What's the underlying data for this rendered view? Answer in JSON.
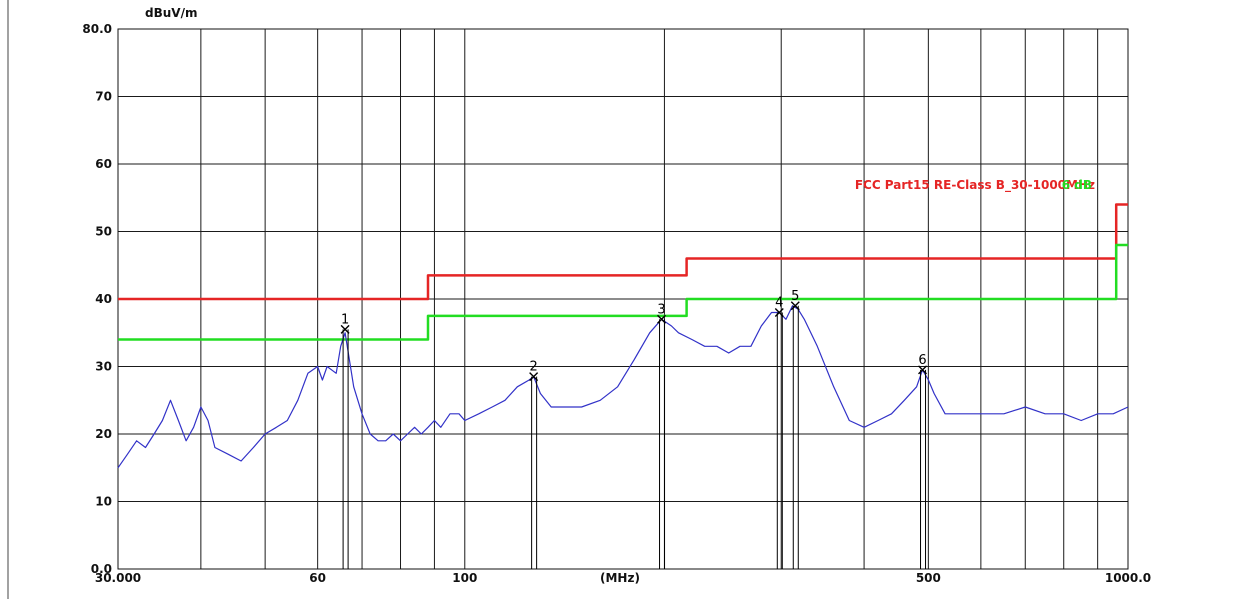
{
  "chart_data": {
    "type": "line",
    "ylabel": "dBuV/m",
    "xlabel": "(MHz)",
    "x_scale": "log",
    "xlim": [
      30,
      1000
    ],
    "ylim": [
      0,
      80
    ],
    "grid": true,
    "y_ticks": [
      "80.0",
      "70",
      "60",
      "50",
      "40",
      "30",
      "20",
      "10",
      "0.0"
    ],
    "x_ticks": [
      {
        "value": 30,
        "label": "30.000"
      },
      {
        "value": 60,
        "label": "60"
      },
      {
        "value": 100,
        "label": "100"
      },
      {
        "value": 500,
        "label": "500"
      },
      {
        "value": 1000,
        "label": "1000.0"
      }
    ],
    "legend": {
      "label": "FCC Part15 RE-Class B_30-1000MHz",
      "overlay_text": "6 dB",
      "placement": "top-right"
    },
    "colors": {
      "limit": "#e52525",
      "margin": "#22dd22",
      "trace": "#3232c8",
      "grid": "#1a1a1a"
    },
    "series": [
      {
        "name": "FCC Part15 RE-Class B_30-1000MHz",
        "points": [
          [
            30,
            40
          ],
          [
            88,
            40
          ],
          [
            88,
            43.5
          ],
          [
            216,
            43.5
          ],
          [
            216,
            46
          ],
          [
            960,
            46
          ],
          [
            960,
            54
          ],
          [
            1000,
            54
          ]
        ]
      },
      {
        "name": "6 dB",
        "points": [
          [
            30,
            34
          ],
          [
            88,
            34
          ],
          [
            88,
            37.5
          ],
          [
            216,
            37.5
          ],
          [
            216,
            40
          ],
          [
            960,
            40
          ],
          [
            960,
            48
          ],
          [
            1000,
            48
          ]
        ]
      },
      {
        "name": "",
        "points": [
          [
            30,
            15
          ],
          [
            31,
            17
          ],
          [
            32,
            19
          ],
          [
            33,
            18
          ],
          [
            34,
            20
          ],
          [
            35,
            22
          ],
          [
            36,
            25
          ],
          [
            37,
            22
          ],
          [
            38,
            19
          ],
          [
            39,
            21
          ],
          [
            40,
            24
          ],
          [
            41,
            22
          ],
          [
            42,
            18
          ],
          [
            44,
            17
          ],
          [
            46,
            16
          ],
          [
            48,
            18
          ],
          [
            50,
            20
          ],
          [
            52,
            21
          ],
          [
            54,
            22
          ],
          [
            56,
            25
          ],
          [
            58,
            29
          ],
          [
            60,
            30
          ],
          [
            61,
            28
          ],
          [
            62,
            30
          ],
          [
            64,
            29
          ],
          [
            65,
            33
          ],
          [
            66,
            35
          ],
          [
            67,
            31
          ],
          [
            68,
            27
          ],
          [
            70,
            23
          ],
          [
            72,
            20
          ],
          [
            74,
            19
          ],
          [
            76,
            19
          ],
          [
            78,
            20
          ],
          [
            80,
            19
          ],
          [
            82,
            20
          ],
          [
            84,
            21
          ],
          [
            86,
            20
          ],
          [
            88,
            21
          ],
          [
            90,
            22
          ],
          [
            92,
            21
          ],
          [
            95,
            23
          ],
          [
            98,
            23
          ],
          [
            100,
            22
          ],
          [
            105,
            23
          ],
          [
            110,
            24
          ],
          [
            115,
            25
          ],
          [
            120,
            27
          ],
          [
            125,
            28
          ],
          [
            127,
            28.5
          ],
          [
            130,
            26
          ],
          [
            135,
            24
          ],
          [
            140,
            24
          ],
          [
            150,
            24
          ],
          [
            160,
            25
          ],
          [
            170,
            27
          ],
          [
            180,
            31
          ],
          [
            190,
            35
          ],
          [
            198,
            37
          ],
          [
            205,
            36
          ],
          [
            210,
            35
          ],
          [
            220,
            34
          ],
          [
            230,
            33
          ],
          [
            240,
            33
          ],
          [
            250,
            32
          ],
          [
            260,
            33
          ],
          [
            270,
            33
          ],
          [
            280,
            36
          ],
          [
            290,
            38
          ],
          [
            298,
            38
          ],
          [
            305,
            37
          ],
          [
            312,
            39
          ],
          [
            318,
            38.5
          ],
          [
            325,
            37
          ],
          [
            340,
            33
          ],
          [
            360,
            27
          ],
          [
            380,
            22
          ],
          [
            400,
            21
          ],
          [
            420,
            22
          ],
          [
            440,
            23
          ],
          [
            460,
            25
          ],
          [
            480,
            27
          ],
          [
            490,
            29.5
          ],
          [
            500,
            28
          ],
          [
            510,
            26
          ],
          [
            530,
            23
          ],
          [
            560,
            23
          ],
          [
            600,
            23
          ],
          [
            650,
            23
          ],
          [
            700,
            24
          ],
          [
            750,
            23
          ],
          [
            800,
            23
          ],
          [
            850,
            22
          ],
          [
            900,
            23
          ],
          [
            950,
            23
          ],
          [
            1000,
            24
          ]
        ]
      }
    ],
    "markers": [
      {
        "id": "1",
        "x": 66,
        "y": 35.5
      },
      {
        "id": "2",
        "x": 127,
        "y": 28.5
      },
      {
        "id": "3",
        "x": 198,
        "y": 37
      },
      {
        "id": "4",
        "x": 298,
        "y": 38
      },
      {
        "id": "5",
        "x": 315,
        "y": 39
      },
      {
        "id": "6",
        "x": 490,
        "y": 29.5
      }
    ]
  }
}
